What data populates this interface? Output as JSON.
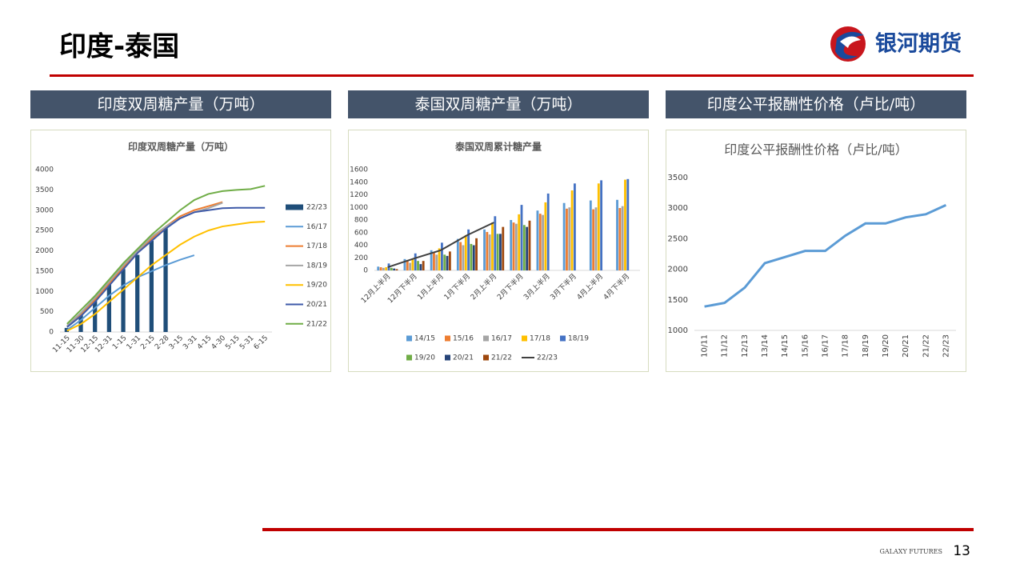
{
  "header": {
    "title": "印度-泰国",
    "logo_text": "银河期货"
  },
  "panels": [
    {
      "heading": "印度双周糖产量（万吨）"
    },
    {
      "heading": "泰国双周糖产量（万吨）"
    },
    {
      "heading": "印度公平报酬性价格（卢比/吨）"
    }
  ],
  "chart_data": [
    {
      "type": "combo",
      "title": "印度双周糖产量（万吨）",
      "legend": "right",
      "categories": [
        "11-15",
        "11-30",
        "12-15",
        "12-31",
        "1-15",
        "1-31",
        "2-15",
        "2-28",
        "3-15",
        "3-31",
        "4-15",
        "4-30",
        "5-15",
        "5-31",
        "6-15"
      ],
      "ylim": [
        0,
        4000
      ],
      "yticks": [
        0,
        500,
        1000,
        1500,
        2000,
        2500,
        3000,
        3500,
        4000
      ],
      "series": [
        {
          "name": "22/23",
          "type": "bar",
          "color": "#1f4e79",
          "values": [
            100,
            420,
            810,
            1200,
            1550,
            1900,
            2250,
            2560,
            null,
            null,
            null,
            null,
            null,
            null,
            null
          ]
        },
        {
          "name": "16/17",
          "type": "line",
          "color": "#5b9bd5",
          "values": [
            50,
            300,
            600,
            900,
            1150,
            1350,
            1500,
            1650,
            1780,
            1890,
            null,
            null,
            null,
            null,
            null
          ]
        },
        {
          "name": "17/18",
          "type": "line",
          "color": "#ed7d31",
          "values": [
            150,
            450,
            800,
            1200,
            1600,
            1950,
            2300,
            2600,
            2850,
            3000,
            3100,
            3200,
            null,
            null,
            null
          ]
        },
        {
          "name": "18/19",
          "type": "line",
          "color": "#a5a5a5",
          "values": [
            150,
            480,
            850,
            1250,
            1650,
            2000,
            2350,
            2600,
            2800,
            2950,
            3050,
            3180,
            null,
            null,
            null
          ]
        },
        {
          "name": "19/20",
          "type": "line",
          "color": "#ffc000",
          "values": [
            30,
            200,
            450,
            750,
            1050,
            1350,
            1650,
            1900,
            2150,
            2350,
            2500,
            2600,
            2650,
            2700,
            2720
          ]
        },
        {
          "name": "20/21",
          "type": "line",
          "color": "#3e5aa8",
          "values": [
            120,
            400,
            750,
            1150,
            1550,
            1950,
            2250,
            2550,
            2800,
            2950,
            3000,
            3050,
            3060,
            3060,
            3060
          ]
        },
        {
          "name": "21/22",
          "type": "line",
          "color": "#70ad47",
          "values": [
            200,
            550,
            900,
            1300,
            1700,
            2050,
            2400,
            2700,
            3000,
            3250,
            3400,
            3470,
            3500,
            3520,
            3600
          ]
        }
      ]
    },
    {
      "type": "combo",
      "title": "泰国双周累计糖产量",
      "legend": "bottom",
      "categories": [
        "12月上半月",
        "12月下半月",
        "1月上半月",
        "1月下半月",
        "2月上半月",
        "2月下半月",
        "3月上半月",
        "3月下半月",
        "4月上半月",
        "4月下半月"
      ],
      "ylim": [
        0,
        1600
      ],
      "yticks": [
        0,
        200,
        400,
        600,
        800,
        1000,
        1200,
        1400,
        1600
      ],
      "series": [
        {
          "name": "14/15",
          "type": "bar",
          "color": "#5b9bd5",
          "values": [
            60,
            180,
            320,
            500,
            650,
            800,
            950,
            1070,
            1110,
            1120
          ]
        },
        {
          "name": "15/16",
          "type": "bar",
          "color": "#ed7d31",
          "values": [
            50,
            150,
            290,
            450,
            610,
            760,
            900,
            980,
            970,
            990
          ]
        },
        {
          "name": "16/17",
          "type": "bar",
          "color": "#a5a5a5",
          "values": [
            40,
            120,
            250,
            400,
            570,
            740,
            880,
            1000,
            1000,
            1020
          ]
        },
        {
          "name": "17/18",
          "type": "bar",
          "color": "#ffc000",
          "values": [
            50,
            180,
            350,
            560,
            760,
            890,
            1080,
            1270,
            1380,
            1440
          ]
        },
        {
          "name": "18/19",
          "type": "bar",
          "color": "#4472c4",
          "values": [
            110,
            270,
            440,
            650,
            860,
            1040,
            1220,
            1380,
            1430,
            1450
          ]
        },
        {
          "name": "19/20",
          "type": "bar",
          "color": "#70ad47",
          "values": [
            40,
            150,
            250,
            420,
            580,
            720,
            null,
            null,
            null,
            null
          ]
        },
        {
          "name": "20/21",
          "type": "bar",
          "color": "#264478",
          "values": [
            30,
            100,
            230,
            400,
            580,
            690,
            null,
            null,
            null,
            null
          ]
        },
        {
          "name": "21/22",
          "type": "bar",
          "color": "#9e480e",
          "values": [
            20,
            150,
            300,
            510,
            690,
            790,
            null,
            null,
            null,
            null
          ]
        },
        {
          "name": "22/23",
          "type": "line",
          "color": "#404040",
          "values": [
            50,
            190,
            320,
            560,
            760,
            null,
            null,
            null,
            null,
            null
          ]
        }
      ]
    },
    {
      "type": "line",
      "title": "印度公平报酬性价格（卢比/吨）",
      "color": "#5b9bd5",
      "categories": [
        "10/11",
        "11/12",
        "12/13",
        "13/14",
        "14/15",
        "15/16",
        "16/17",
        "17/18",
        "18/19",
        "19/20",
        "20/21",
        "21/22",
        "22/23"
      ],
      "values": [
        1390,
        1450,
        1700,
        2100,
        2200,
        2300,
        2300,
        2550,
        2750,
        2750,
        2850,
        2900,
        3050
      ],
      "ylim": [
        1000,
        3500
      ],
      "yticks": [
        1000,
        1500,
        2000,
        2500,
        3000,
        3500
      ]
    }
  ],
  "footer": {
    "brand": "GALAXY FUTURES",
    "page": "13"
  }
}
